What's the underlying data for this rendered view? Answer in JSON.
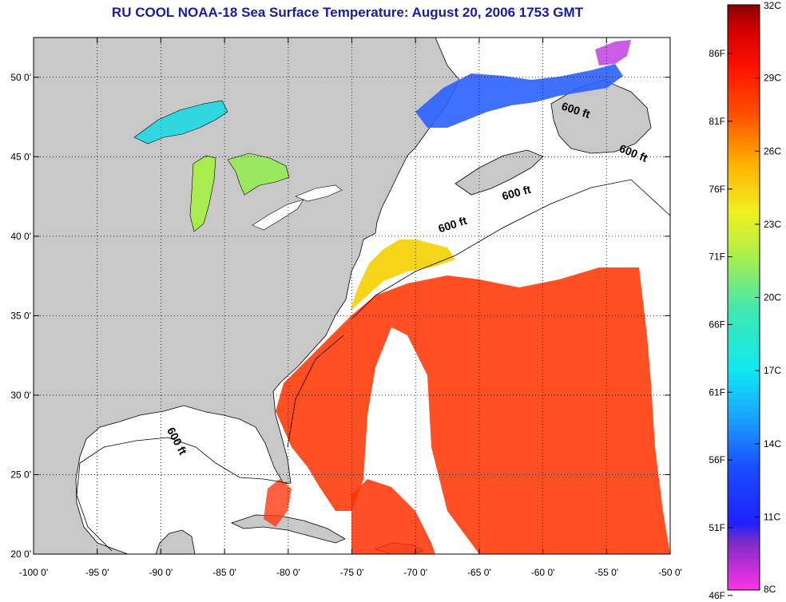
{
  "title": "RU COOL  NOAA-18  Sea Surface Temperature:  August 20, 2006 1753 GMT",
  "map": {
    "lon_range": [
      -100,
      -50
    ],
    "lat_range": [
      20,
      52.5
    ],
    "lon_ticks": [
      {
        "value": -100,
        "label": "-100 0'"
      },
      {
        "value": -95,
        "label": "-95 0'"
      },
      {
        "value": -90,
        "label": "-90 0'"
      },
      {
        "value": -85,
        "label": "-85 0'"
      },
      {
        "value": -80,
        "label": "-80 0'"
      },
      {
        "value": -75,
        "label": "-75 0'"
      },
      {
        "value": -70,
        "label": "-70 0'"
      },
      {
        "value": -65,
        "label": "-65 0'"
      },
      {
        "value": -60,
        "label": "-60 0'"
      },
      {
        "value": -55,
        "label": "-55 0'"
      },
      {
        "value": -50,
        "label": "-50 0'"
      }
    ],
    "lat_ticks": [
      {
        "value": 20,
        "label": "20 0'"
      },
      {
        "value": 25,
        "label": "25 0'"
      },
      {
        "value": 30,
        "label": "30 0'"
      },
      {
        "value": 35,
        "label": "35 0'"
      },
      {
        "value": 40,
        "label": "40 0'"
      },
      {
        "value": 45,
        "label": "45 0'"
      },
      {
        "value": 50,
        "label": "50 0'"
      }
    ],
    "grid": "dotted",
    "land_color": "#c8c8c8",
    "no_data_color": "#ffffff",
    "contour_labels": [
      {
        "text": "600 ft",
        "lon": -89,
        "lat": 27,
        "angle": 62
      },
      {
        "text": "600 ft",
        "lon": -67,
        "lat": 40.5,
        "angle": -18
      },
      {
        "text": "600 ft",
        "lon": -62,
        "lat": 42.5,
        "angle": -15
      },
      {
        "text": "600 ft",
        "lon": -57.5,
        "lat": 47.7,
        "angle": 18
      },
      {
        "text": "600 ft",
        "lon": -53,
        "lat": 45,
        "angle": 22
      }
    ]
  },
  "colorbar": {
    "celsius": [
      {
        "value": 8,
        "label": "8C"
      },
      {
        "value": 11,
        "label": "11C"
      },
      {
        "value": 14,
        "label": "14C"
      },
      {
        "value": 17,
        "label": "17C"
      },
      {
        "value": 20,
        "label": "20C"
      },
      {
        "value": 23,
        "label": "23C"
      },
      {
        "value": 26,
        "label": "26C"
      },
      {
        "value": 29,
        "label": "29C"
      },
      {
        "value": 32,
        "label": "32C"
      }
    ],
    "fahrenheit": [
      {
        "value": 46,
        "label": "46F"
      },
      {
        "value": 51,
        "label": "51F"
      },
      {
        "value": 56,
        "label": "56F"
      },
      {
        "value": 61,
        "label": "61F"
      },
      {
        "value": 66,
        "label": "66F"
      },
      {
        "value": 71,
        "label": "71F"
      },
      {
        "value": 76,
        "label": "76F"
      },
      {
        "value": 81,
        "label": "81F"
      },
      {
        "value": 86,
        "label": "86F"
      }
    ],
    "range_c": [
      8,
      32
    ],
    "stops": [
      {
        "c": 8,
        "color": "#ff33e6"
      },
      {
        "c": 10,
        "color": "#7a2cc8"
      },
      {
        "c": 10.7,
        "color": "#2020ff"
      },
      {
        "c": 13,
        "color": "#1a4dff"
      },
      {
        "c": 15,
        "color": "#1aa0ff"
      },
      {
        "c": 17,
        "color": "#10e8f0"
      },
      {
        "c": 19.5,
        "color": "#40e8b0"
      },
      {
        "c": 22,
        "color": "#b8f040"
      },
      {
        "c": 23.5,
        "color": "#f0f020"
      },
      {
        "c": 25.5,
        "color": "#ffb000"
      },
      {
        "c": 27.5,
        "color": "#ff5000"
      },
      {
        "c": 29.5,
        "color": "#ff1000"
      },
      {
        "c": 31,
        "color": "#d00000"
      },
      {
        "c": 32,
        "color": "#8a0000"
      }
    ]
  }
}
